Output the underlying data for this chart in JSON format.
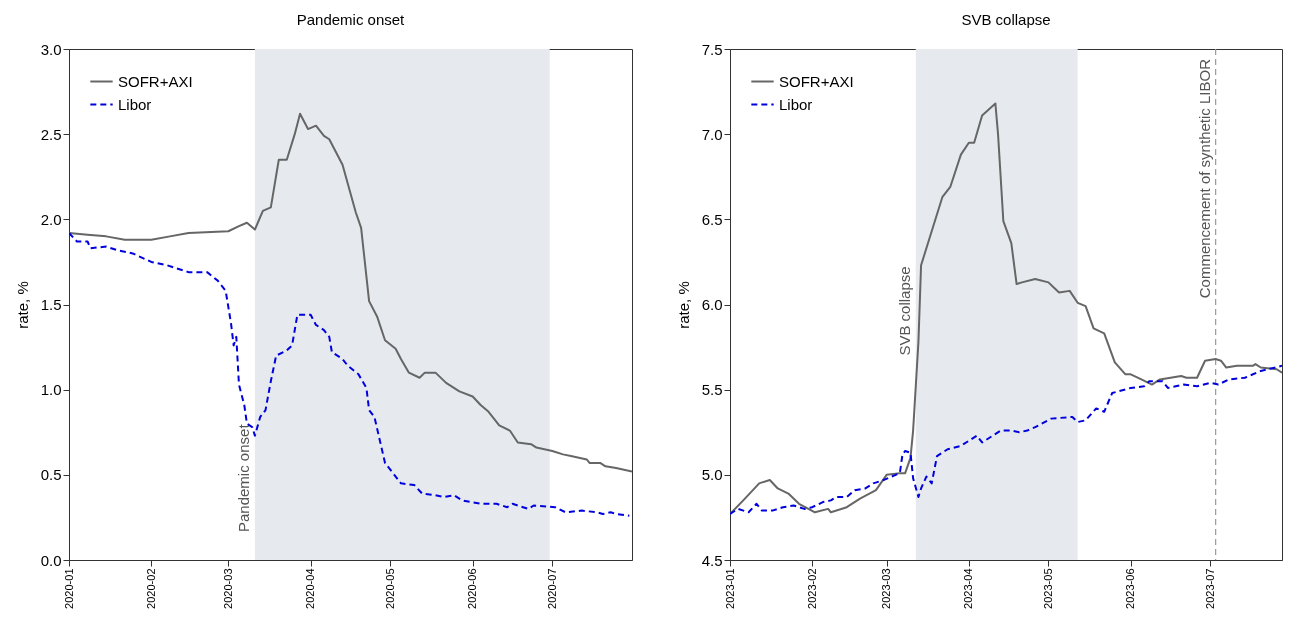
{
  "chart_data": [
    {
      "type": "line",
      "title": "Pandemic onset",
      "ylabel": "rate, %",
      "xlim": [
        "2020-01-01",
        "2020-07-31"
      ],
      "xticks": [
        "2020-01",
        "2020-02",
        "2020-03",
        "2020-04",
        "2020-05",
        "2020-06",
        "2020-07"
      ],
      "ylim": [
        0,
        3
      ],
      "yticks": [
        {
          "value": 0,
          "label": "0.0"
        },
        0.5,
        {
          "value": 1,
          "label": "1.0"
        },
        1.5,
        {
          "value": 2,
          "label": "2.0"
        },
        2.5,
        {
          "value": 3,
          "label": "3.0"
        }
      ],
      "grid": false,
      "legend": "top left",
      "bands": [
        {
          "axis": "x",
          "from": "2020-03-11",
          "to": "2020-06-30",
          "label": "Pandemic onset",
          "color": "#e6eaef"
        }
      ],
      "series": [
        {
          "name": "SOFR+AXI",
          "color": "#666666",
          "line_style": "solid",
          "x": [
            "2020-01-01",
            "2020-01-08",
            "2020-01-15",
            "2020-01-22",
            "2020-02-01",
            "2020-02-08",
            "2020-02-15",
            "2020-03-01",
            "2020-03-05",
            "2020-03-08",
            "2020-03-11",
            "2020-03-14",
            "2020-03-17",
            "2020-03-20",
            "2020-03-23",
            "2020-03-26",
            "2020-03-28",
            "2020-03-31",
            "2020-04-03",
            "2020-04-06",
            "2020-04-08",
            "2020-04-13",
            "2020-04-18",
            "2020-04-20",
            "2020-04-23",
            "2020-04-26",
            "2020-04-29",
            "2020-05-03",
            "2020-05-05",
            "2020-05-08",
            "2020-05-12",
            "2020-05-14",
            "2020-05-18",
            "2020-05-22",
            "2020-05-27",
            "2020-06-01",
            "2020-06-04",
            "2020-06-07",
            "2020-06-11",
            "2020-06-15",
            "2020-06-18",
            "2020-06-23",
            "2020-06-25",
            "2020-07-01",
            "2020-07-05",
            "2020-07-08",
            "2020-07-14",
            "2020-07-15",
            "2020-07-19",
            "2020-07-21",
            "2020-07-25",
            "2020-07-31"
          ],
          "values": [
            1.92,
            1.91,
            1.9,
            1.88,
            1.88,
            1.9,
            1.92,
            1.93,
            1.96,
            1.98,
            1.94,
            2.05,
            2.07,
            2.35,
            2.35,
            2.5,
            2.62,
            2.53,
            2.55,
            2.49,
            2.47,
            2.32,
            2.04,
            1.95,
            1.52,
            1.43,
            1.29,
            1.24,
            1.18,
            1.1,
            1.07,
            1.1,
            1.1,
            1.04,
            0.99,
            0.96,
            0.91,
            0.87,
            0.79,
            0.76,
            0.69,
            0.68,
            0.66,
            0.64,
            0.62,
            0.61,
            0.59,
            0.57,
            0.57,
            0.55,
            0.54,
            0.52
          ]
        },
        {
          "name": "Libor",
          "color": "#0000dd",
          "line_style": "dashed",
          "x": [
            "2020-01-01",
            "2020-01-04",
            "2020-01-08",
            "2020-01-09",
            "2020-01-15",
            "2020-01-19",
            "2020-01-25",
            "2020-02-01",
            "2020-02-07",
            "2020-02-15",
            "2020-02-22",
            "2020-02-26",
            "2020-02-29",
            "2020-03-02",
            "2020-03-03",
            "2020-03-04",
            "2020-03-05",
            "2020-03-07",
            "2020-03-08",
            "2020-03-10",
            "2020-03-11",
            "2020-03-13",
            "2020-03-15",
            "2020-03-17",
            "2020-03-19",
            "2020-03-23",
            "2020-03-25",
            "2020-03-27",
            "2020-04-01",
            "2020-04-03",
            "2020-04-06",
            "2020-04-08",
            "2020-04-09",
            "2020-04-13",
            "2020-04-15",
            "2020-04-19",
            "2020-04-22",
            "2020-04-23",
            "2020-04-25",
            "2020-04-29",
            "2020-05-02",
            "2020-05-05",
            "2020-05-10",
            "2020-05-13",
            "2020-05-18",
            "2020-05-21",
            "2020-05-25",
            "2020-05-28",
            "2020-06-04",
            "2020-06-10",
            "2020-06-14",
            "2020-06-16",
            "2020-06-22",
            "2020-06-24",
            "2020-07-02",
            "2020-07-06",
            "2020-07-12",
            "2020-07-18",
            "2020-07-20",
            "2020-07-23",
            "2020-07-25",
            "2020-07-30"
          ],
          "values": [
            1.92,
            1.87,
            1.87,
            1.83,
            1.84,
            1.82,
            1.8,
            1.75,
            1.73,
            1.69,
            1.69,
            1.64,
            1.58,
            1.39,
            1.26,
            1.31,
            1.03,
            0.91,
            0.8,
            0.78,
            0.73,
            0.84,
            0.88,
            1.05,
            1.2,
            1.23,
            1.26,
            1.44,
            1.44,
            1.38,
            1.35,
            1.31,
            1.22,
            1.18,
            1.14,
            1.09,
            1.01,
            0.88,
            0.84,
            0.57,
            0.51,
            0.45,
            0.44,
            0.39,
            0.38,
            0.37,
            0.38,
            0.35,
            0.33,
            0.33,
            0.31,
            0.33,
            0.3,
            0.32,
            0.31,
            0.28,
            0.29,
            0.28,
            0.27,
            0.28,
            0.27,
            0.26
          ]
        }
      ]
    },
    {
      "type": "line",
      "title": "SVB collapse",
      "ylabel": "rate, %",
      "xlim": [
        "2023-01-01",
        "2023-07-28"
      ],
      "xticks": [
        "2023-01",
        "2023-02",
        "2023-03",
        "2023-04",
        "2023-05",
        "2023-06",
        "2023-07"
      ],
      "ylim": [
        4.5,
        7.5
      ],
      "yticks": [
        4.5,
        {
          "value": 5,
          "label": "5.0"
        },
        5.5,
        {
          "value": 6,
          "label": "6.0"
        },
        6.5,
        {
          "value": 7,
          "label": "7.0"
        },
        7.5
      ],
      "grid": false,
      "legend": "top left",
      "bands": [
        {
          "axis": "x",
          "from": "2023-03-12",
          "to": "2023-05-12",
          "label": "SVB collapse",
          "color": "#e6eaef"
        }
      ],
      "ref_lines": [
        {
          "axis": "x",
          "value": "2023-07-03",
          "label": "Commencement of synthetic LIBOR",
          "color": "#999999",
          "line_style": "dashed"
        }
      ],
      "series": [
        {
          "name": "SOFR+AXI",
          "color": "#666666",
          "line_style": "solid",
          "x": [
            "2023-01-01",
            "2023-01-06",
            "2023-01-09",
            "2023-01-12",
            "2023-01-16",
            "2023-01-19",
            "2023-01-23",
            "2023-01-27",
            "2023-02-02",
            "2023-02-07",
            "2023-02-08",
            "2023-02-14",
            "2023-02-19",
            "2023-02-25",
            "2023-03-01",
            "2023-03-06",
            "2023-03-08",
            "2023-03-10",
            "2023-03-11",
            "2023-03-13",
            "2023-03-14",
            "2023-03-19",
            "2023-03-22",
            "2023-03-25",
            "2023-03-29",
            "2023-04-01",
            "2023-04-03",
            "2023-04-06",
            "2023-04-11",
            "2023-04-12",
            "2023-04-14",
            "2023-04-17",
            "2023-04-19",
            "2023-04-21",
            "2023-04-26",
            "2023-05-01",
            "2023-05-03",
            "2023-05-05",
            "2023-05-09",
            "2023-05-12",
            "2023-05-15",
            "2023-05-18",
            "2023-05-22",
            "2023-05-26",
            "2023-05-30",
            "2023-06-01",
            "2023-06-05",
            "2023-06-09",
            "2023-06-12",
            "2023-06-20",
            "2023-06-22",
            "2023-06-26",
            "2023-06-29",
            "2023-07-03",
            "2023-07-05",
            "2023-07-07",
            "2023-07-11",
            "2023-07-17",
            "2023-07-18",
            "2023-07-20",
            "2023-07-26",
            "2023-07-28"
          ],
          "values": [
            4.77,
            4.85,
            4.9,
            4.95,
            4.97,
            4.92,
            4.89,
            4.83,
            4.78,
            4.8,
            4.78,
            4.81,
            4.86,
            4.91,
            5.0,
            5.01,
            5.01,
            5.1,
            5.26,
            5.78,
            6.23,
            6.48,
            6.63,
            6.69,
            6.88,
            6.95,
            6.95,
            7.11,
            7.18,
            7.0,
            6.49,
            6.36,
            6.12,
            6.13,
            6.15,
            6.13,
            6.1,
            6.07,
            6.08,
            6.01,
            5.99,
            5.86,
            5.83,
            5.66,
            5.59,
            5.59,
            5.56,
            5.53,
            5.56,
            5.58,
            5.57,
            5.57,
            5.67,
            5.68,
            5.67,
            5.63,
            5.64,
            5.64,
            5.65,
            5.63,
            5.62,
            5.6
          ]
        },
        {
          "name": "Libor",
          "color": "#0000dd",
          "line_style": "dashed",
          "x": [
            "2023-01-01",
            "2023-01-04",
            "2023-01-08",
            "2023-01-11",
            "2023-01-13",
            "2023-01-17",
            "2023-01-21",
            "2023-01-25",
            "2023-01-29",
            "2023-02-01",
            "2023-02-05",
            "2023-02-08",
            "2023-02-10",
            "2023-02-14",
            "2023-02-17",
            "2023-02-21",
            "2023-02-24",
            "2023-02-28",
            "2023-03-03",
            "2023-03-06",
            "2023-03-07",
            "2023-03-08",
            "2023-03-10",
            "2023-03-11",
            "2023-03-13",
            "2023-03-14",
            "2023-03-16",
            "2023-03-18",
            "2023-03-20",
            "2023-03-24",
            "2023-03-29",
            "2023-04-04",
            "2023-04-06",
            "2023-04-13",
            "2023-04-17",
            "2023-04-20",
            "2023-04-23",
            "2023-04-26",
            "2023-05-02",
            "2023-05-10",
            "2023-05-12",
            "2023-05-15",
            "2023-05-19",
            "2023-05-22",
            "2023-05-25",
            "2023-06-01",
            "2023-06-06",
            "2023-06-08",
            "2023-06-13",
            "2023-06-15",
            "2023-06-21",
            "2023-06-26",
            "2023-07-01",
            "2023-07-04",
            "2023-07-08",
            "2023-07-14",
            "2023-07-20",
            "2023-07-28"
          ],
          "values": [
            4.77,
            4.8,
            4.78,
            4.83,
            4.79,
            4.79,
            4.81,
            4.82,
            4.8,
            4.81,
            4.84,
            4.85,
            4.87,
            4.87,
            4.91,
            4.92,
            4.95,
            4.97,
            4.99,
            5.01,
            5.12,
            5.14,
            5.13,
            4.98,
            4.87,
            4.92,
            4.99,
            4.95,
            5.11,
            5.15,
            5.17,
            5.23,
            5.19,
            5.26,
            5.26,
            5.25,
            5.26,
            5.28,
            5.33,
            5.34,
            5.31,
            5.32,
            5.39,
            5.37,
            5.48,
            5.51,
            5.52,
            5.55,
            5.55,
            5.51,
            5.53,
            5.52,
            5.54,
            5.53,
            5.56,
            5.57,
            5.61,
            5.64
          ]
        }
      ]
    }
  ]
}
